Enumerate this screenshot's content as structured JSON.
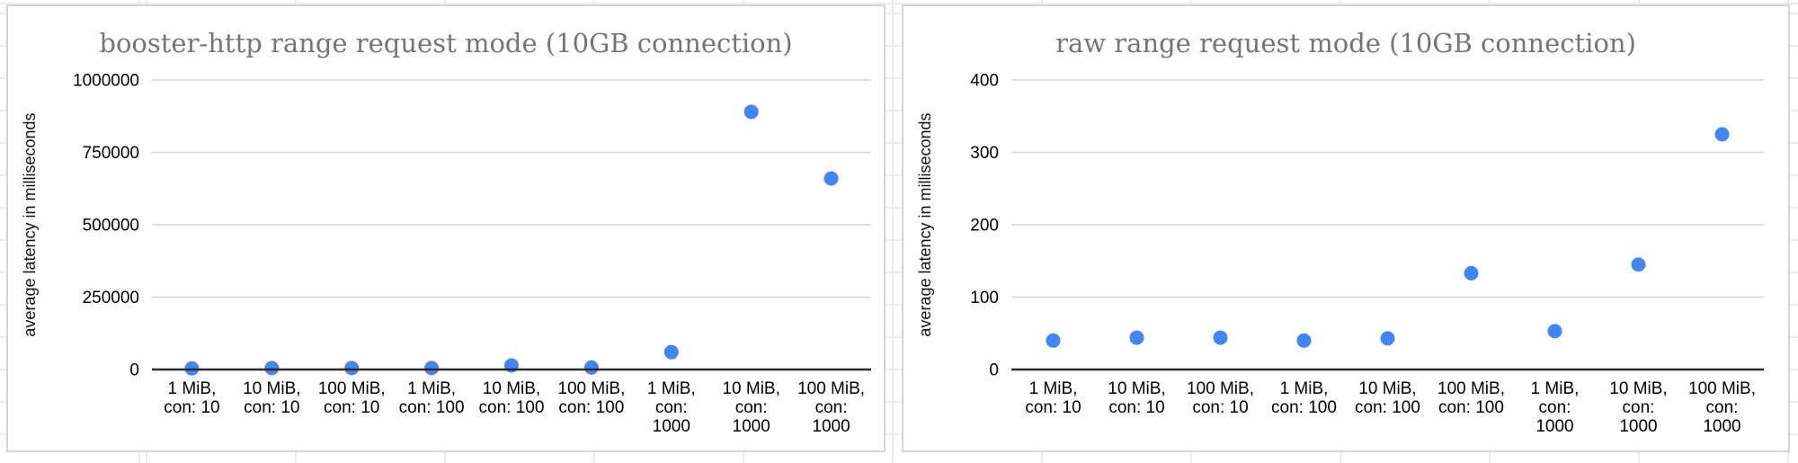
{
  "colors": {
    "point_blue": "#4285f4",
    "title_text": "#757575",
    "axis_text": "#000000",
    "gridline": "#d4d4d4",
    "axis_line": "#2b2b2b",
    "card_border": "#d2d4d6",
    "sheet_gridline": "#e8eaec",
    "background": "#ffffff"
  },
  "chart_data": [
    {
      "type": "scatter",
      "title": "booster-http range request mode (10GB connection)",
      "xlabel": "",
      "ylabel": "average latency in milliseconds",
      "ylim": [
        0,
        1000000
      ],
      "yticks": [
        0,
        250000,
        500000,
        750000,
        1000000
      ],
      "grid": true,
      "legend": false,
      "point_color": "#4285f4",
      "categories": [
        "1 MiB, con: 10",
        "10 MiB, con: 10",
        "100 MiB, con: 10",
        "1 MiB, con: 100",
        "10 MiB, con: 100",
        "100 MiB, con: 100",
        "1 MiB, con: 1000",
        "10 MiB, con: 1000",
        "100 MiB, con: 1000"
      ],
      "category_lines": [
        [
          "1 MiB,",
          "con: 10"
        ],
        [
          "10 MiB,",
          "con: 10"
        ],
        [
          "100 MiB,",
          "con: 10"
        ],
        [
          "1 MiB,",
          "con: 100"
        ],
        [
          "10 MiB,",
          "con: 100"
        ],
        [
          "100 MiB,",
          "con: 100"
        ],
        [
          "1 MiB,",
          "con:",
          "1000"
        ],
        [
          "10 MiB,",
          "con:",
          "1000"
        ],
        [
          "100 MiB,",
          "con:",
          "1000"
        ]
      ],
      "values": [
        4000,
        5000,
        5000,
        5000,
        14000,
        7000,
        60000,
        890000,
        660000
      ]
    },
    {
      "type": "scatter",
      "title": "raw range request mode (10GB connection)",
      "xlabel": "",
      "ylabel": "average latency in milliseconds",
      "ylim": [
        0,
        400
      ],
      "yticks": [
        0,
        100,
        200,
        300,
        400
      ],
      "grid": true,
      "legend": false,
      "point_color": "#4285f4",
      "categories": [
        "1 MiB, con: 10",
        "10 MiB, con: 10",
        "100 MiB, con: 10",
        "1 MiB, con: 100",
        "10 MiB, con: 100",
        "100 MiB, con: 100",
        "1 MiB, con: 1000",
        "10 MiB, con: 1000",
        "100 MiB, con: 1000"
      ],
      "category_lines": [
        [
          "1 MiB,",
          "con: 10"
        ],
        [
          "10 MiB,",
          "con: 10"
        ],
        [
          "100 MiB,",
          "con: 10"
        ],
        [
          "1 MiB,",
          "con: 100"
        ],
        [
          "10 MiB,",
          "con: 100"
        ],
        [
          "100 MiB,",
          "con: 100"
        ],
        [
          "1 MiB,",
          "con:",
          "1000"
        ],
        [
          "10 MiB,",
          "con:",
          "1000"
        ],
        [
          "100 MiB,",
          "con:",
          "1000"
        ]
      ],
      "values": [
        40,
        44,
        44,
        40,
        43,
        133,
        53,
        145,
        325
      ]
    }
  ]
}
